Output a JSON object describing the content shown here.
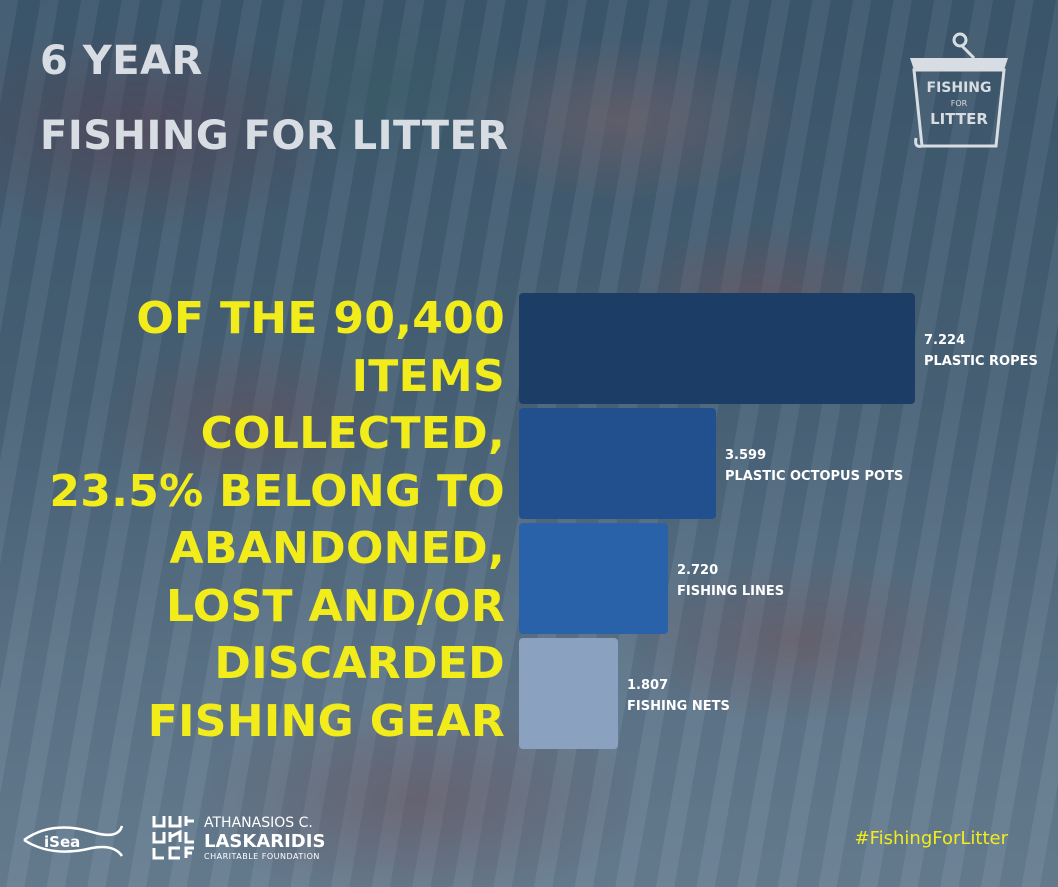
{
  "header": {
    "title_line1": "6 YEAR",
    "title_line2": "FISHING FOR LITTER"
  },
  "headline": "OF THE 90,400 ITEMS COLLECTED, 23.5% BELONG TO ABANDONED, LOST AND/OR DISCARDED FISHING GEAR",
  "logo": {
    "line1": "FISHING",
    "line2": "FOR",
    "line3": "LITTER"
  },
  "footer": {
    "isea": "iSea",
    "laskaridis_line1": "ATHANASIOS C.",
    "laskaridis_line2": "LASKARIDIS",
    "laskaridis_line3": "CHARITABLE FOUNDATION",
    "hashtag": "#FishingForLitter"
  },
  "colors": {
    "accent_yellow": "#f2ed1a",
    "bar1": "#1c3e66",
    "bar2": "#22508f",
    "bar3": "#2a62aa",
    "bar4": "#8aa2bf"
  },
  "chart_data": {
    "type": "bar",
    "orientation": "horizontal",
    "categories": [
      "PLASTIC ROPES",
      "PLASTIC OCTOPUS POTS",
      "FISHING LINES",
      "FISHING NETS"
    ],
    "values": [
      7224,
      3599,
      2720,
      1807
    ],
    "value_labels": [
      "7.224",
      "3.599",
      "2.720",
      "1.807"
    ],
    "title": "",
    "xlabel": "",
    "ylabel": "",
    "grid": false
  }
}
